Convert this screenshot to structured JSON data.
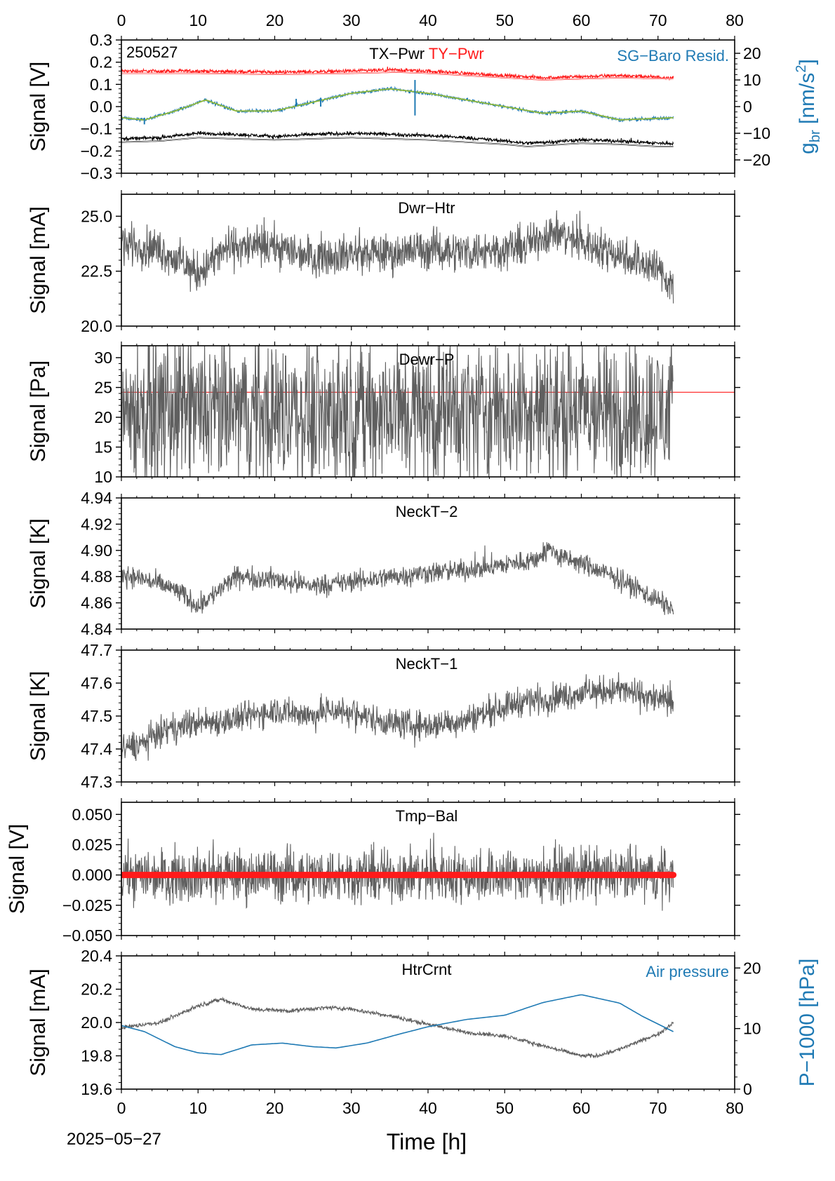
{
  "figure": {
    "date_label": "2025−05−27",
    "xlabel": "Time [h]",
    "xlim": [
      0,
      80
    ],
    "xticks": [
      0,
      10,
      20,
      30,
      40,
      50,
      60,
      70,
      80
    ],
    "colors": {
      "gray": "#5f5f5f",
      "red": "#ff1a1a",
      "blue": "#1f7ab4",
      "green": "#8fb83a",
      "black": "#000000"
    }
  },
  "chart_data": [
    {
      "type": "line",
      "panel_title": "",
      "corner_label": "250527",
      "title_parts": [
        {
          "text": "TX−Pwr",
          "color": "#000000"
        },
        {
          "text": "TY−Pwr",
          "color": "#ff1a1a"
        }
      ],
      "right_label_text": "SG−Baro Resid.",
      "ylabel": "Signal [V]",
      "ylim": [
        -0.3,
        0.3
      ],
      "yticks": [
        -0.3,
        -0.2,
        -0.1,
        0.0,
        0.1,
        0.2,
        0.3
      ],
      "ytick_labels": [
        "−0.3",
        "−0.2",
        "−0.1",
        "0.0",
        "0.1",
        "0.2",
        "0.3"
      ],
      "y2label_main": "g",
      "y2label_sub": "br",
      "y2label_rest": " [nm/s",
      "y2label_sup": "2",
      "y2label_end": "]",
      "y2lim": [
        -25,
        25
      ],
      "y2ticks": [
        -20,
        -10,
        0,
        10,
        20
      ],
      "y2tick_labels": [
        "−20",
        "−10",
        "0",
        "10",
        "20"
      ],
      "series": [
        {
          "name": "TY−Pwr",
          "color": "#ff1a1a",
          "noise": 0.004,
          "x": [
            0,
            10,
            20,
            30,
            36,
            40,
            45,
            50,
            55,
            60,
            65,
            72
          ],
          "y": [
            0.16,
            0.16,
            0.155,
            0.16,
            0.165,
            0.16,
            0.15,
            0.14,
            0.13,
            0.135,
            0.14,
            0.13
          ]
        },
        {
          "name": "TY−Pwr model",
          "color": "#ff1a1a",
          "noise": 0,
          "x": [
            0,
            10,
            20,
            30,
            36,
            40,
            45,
            50,
            55,
            60,
            65,
            72
          ],
          "y": [
            0.15,
            0.15,
            0.145,
            0.15,
            0.155,
            0.15,
            0.14,
            0.13,
            0.12,
            0.125,
            0.13,
            0.125
          ]
        },
        {
          "name": "TX−Pwr",
          "color": "#000000",
          "noise": 0.004,
          "x": [
            0,
            5,
            10,
            15,
            20,
            25,
            30,
            35,
            40,
            45,
            50,
            53,
            60,
            65,
            70,
            72
          ],
          "y": [
            -0.145,
            -0.14,
            -0.12,
            -0.125,
            -0.135,
            -0.125,
            -0.12,
            -0.125,
            -0.13,
            -0.14,
            -0.155,
            -0.165,
            -0.15,
            -0.155,
            -0.165,
            -0.165
          ]
        },
        {
          "name": "TX−Pwr model",
          "color": "#000000",
          "noise": 0,
          "x": [
            0,
            5,
            10,
            15,
            20,
            25,
            30,
            35,
            40,
            45,
            50,
            53,
            60,
            65,
            70,
            72
          ],
          "y": [
            -0.16,
            -0.155,
            -0.14,
            -0.145,
            -0.15,
            -0.145,
            -0.14,
            -0.145,
            -0.15,
            -0.16,
            -0.17,
            -0.18,
            -0.165,
            -0.17,
            -0.18,
            -0.18
          ]
        },
        {
          "name": "SG−Baro Resid.",
          "color": "#1f7ab4",
          "noise": 0.004,
          "x": [
            0,
            3,
            7,
            11,
            15,
            20,
            25,
            30,
            35,
            40,
            45,
            50,
            55,
            60,
            65,
            72
          ],
          "y": [
            -0.05,
            -0.06,
            -0.02,
            0.03,
            -0.02,
            -0.02,
            0.02,
            0.06,
            0.08,
            0.06,
            0.03,
            0.0,
            -0.03,
            -0.02,
            -0.06,
            -0.05
          ]
        },
        {
          "name": "SG−Baro Resid. fit",
          "color": "#8fb83a",
          "noise": 0,
          "x": [
            0,
            3,
            7,
            11,
            15,
            20,
            25,
            30,
            35,
            40,
            45,
            50,
            55,
            60,
            65,
            72
          ],
          "y": [
            -0.05,
            -0.06,
            -0.02,
            0.03,
            -0.02,
            -0.02,
            0.02,
            0.06,
            0.08,
            0.06,
            0.03,
            0.0,
            -0.03,
            -0.02,
            -0.06,
            -0.05
          ]
        }
      ],
      "spikes": [
        {
          "x": 22.8,
          "y0": 0.0,
          "y1": 0.035,
          "color": "#1f7ab4"
        },
        {
          "x": 26.0,
          "y0": 0.0,
          "y1": 0.04,
          "color": "#1f7ab4"
        },
        {
          "x": 38.3,
          "y0": -0.04,
          "y1": 0.12,
          "color": "#1f7ab4"
        },
        {
          "x": 3.0,
          "y0": -0.08,
          "y1": -0.05,
          "color": "#1f7ab4"
        }
      ]
    },
    {
      "type": "line",
      "panel_title": "Dwr−Htr",
      "ylabel": "Signal [mA]",
      "ylim": [
        20,
        26
      ],
      "yticks": [
        20,
        22.5,
        25
      ],
      "ytick_labels": [
        "20.0",
        "22.5",
        "25.0"
      ],
      "series": [
        {
          "name": "Dwr−Htr",
          "color": "#5f5f5f",
          "noise": 0.45,
          "x": [
            0,
            5,
            10,
            14,
            20,
            25,
            30,
            35,
            40,
            45,
            50,
            53,
            56,
            60,
            65,
            70,
            72
          ],
          "y": [
            23.8,
            23.5,
            22.4,
            23.6,
            23.6,
            23.2,
            23.3,
            23.3,
            23.5,
            23.4,
            23.5,
            23.7,
            24.3,
            23.8,
            23.3,
            22.6,
            21.8
          ]
        }
      ]
    },
    {
      "type": "line",
      "panel_title": "Dewr−P",
      "ylabel": "Signal [Pa]",
      "ylim": [
        10,
        32
      ],
      "yticks": [
        10,
        15,
        20,
        25,
        30
      ],
      "ytick_labels": [
        "10",
        "15",
        "20",
        "25",
        "30"
      ],
      "hline": {
        "y": 24.2,
        "color": "#ff1a1a"
      },
      "series": [
        {
          "name": "Dewr−P",
          "color": "#5f5f5f",
          "noise": 6.0,
          "x": [
            0,
            72
          ],
          "y": [
            21,
            21
          ]
        }
      ]
    },
    {
      "type": "line",
      "panel_title": "NeckT−2",
      "ylabel": "Signal [K]",
      "ylim": [
        4.84,
        4.94
      ],
      "yticks": [
        4.84,
        4.86,
        4.88,
        4.9,
        4.92,
        4.94
      ],
      "ytick_labels": [
        "4.84",
        "4.86",
        "4.88",
        "4.90",
        "4.92",
        "4.94"
      ],
      "series": [
        {
          "name": "NeckT−2",
          "color": "#5f5f5f",
          "noise": 0.004,
          "x": [
            0,
            3,
            7,
            10,
            12,
            15,
            20,
            25,
            30,
            35,
            40,
            45,
            50,
            54,
            56,
            57,
            60,
            65,
            70,
            72
          ],
          "y": [
            4.882,
            4.878,
            4.87,
            4.858,
            4.866,
            4.88,
            4.878,
            4.873,
            4.876,
            4.88,
            4.883,
            4.885,
            4.889,
            4.893,
            4.902,
            4.895,
            4.89,
            4.878,
            4.862,
            4.855
          ]
        }
      ]
    },
    {
      "type": "line",
      "panel_title": "NeckT−1",
      "ylabel": "Signal [K]",
      "ylim": [
        47.3,
        47.7
      ],
      "yticks": [
        47.3,
        47.4,
        47.5,
        47.6,
        47.7
      ],
      "ytick_labels": [
        "47.3",
        "47.4",
        "47.5",
        "47.6",
        "47.7"
      ],
      "series": [
        {
          "name": "NeckT−1",
          "color": "#5f5f5f",
          "noise": 0.022,
          "x": [
            0,
            3,
            5,
            8,
            10,
            15,
            20,
            25,
            27,
            30,
            35,
            40,
            45,
            50,
            53,
            55,
            60,
            65,
            70,
            72
          ],
          "y": [
            47.4,
            47.42,
            47.45,
            47.47,
            47.48,
            47.49,
            47.52,
            47.5,
            47.52,
            47.51,
            47.48,
            47.47,
            47.49,
            47.53,
            47.55,
            47.55,
            47.57,
            47.58,
            47.55,
            47.54
          ]
        }
      ]
    },
    {
      "type": "line",
      "panel_title": "Tmp−Bal",
      "ylabel": "Signal [V]",
      "ylim": [
        -0.05,
        0.06
      ],
      "yticks": [
        -0.05,
        -0.025,
        0,
        0.025,
        0.05
      ],
      "ytick_labels": [
        "−0.050",
        "−0.025",
        "0.000",
        "0.025",
        "0.050"
      ],
      "series": [
        {
          "name": "Tmp−Bal",
          "color": "#5f5f5f",
          "noise": 0.011,
          "x": [
            0,
            72
          ],
          "y": [
            0,
            0
          ]
        },
        {
          "name": "Tmp−Bal model",
          "color": "#ff1a1a",
          "noise": 0,
          "x": [
            0,
            72
          ],
          "y": [
            0,
            0
          ]
        }
      ]
    },
    {
      "type": "line",
      "panel_title": "HtrCrnt",
      "right_label_text": "Air pressure",
      "ylabel": "Signal [mA]",
      "ylim": [
        19.6,
        20.4
      ],
      "yticks": [
        19.6,
        19.8,
        20.0,
        20.2,
        20.4
      ],
      "ytick_labels": [
        "19.6",
        "19.8",
        "20.0",
        "20.2",
        "20.4"
      ],
      "y2label_main": "P−1000 [hPa]",
      "y2lim": [
        0,
        22
      ],
      "y2ticks": [
        0,
        10,
        20
      ],
      "y2tick_labels": [
        "0",
        "10",
        "20"
      ],
      "series": [
        {
          "name": "HtrCrnt",
          "color": "#5f5f5f",
          "noise": 0.006,
          "x": [
            0,
            5,
            10,
            13,
            17,
            22,
            27,
            30,
            35,
            40,
            45,
            50,
            55,
            60,
            62,
            65,
            70,
            72
          ],
          "y": [
            19.97,
            20.0,
            20.1,
            20.14,
            20.08,
            20.07,
            20.09,
            20.08,
            20.04,
            19.99,
            19.94,
            19.92,
            19.86,
            19.8,
            19.8,
            19.84,
            19.93,
            20.0
          ]
        },
        {
          "name": "Air pressure",
          "color": "#1f7ab4",
          "noise": 0,
          "x": [
            0,
            3,
            7,
            10,
            13,
            17,
            21,
            25,
            28,
            32,
            36,
            40,
            45,
            50,
            55,
            60,
            65,
            68,
            72
          ],
          "y": [
            10.5,
            9.5,
            7,
            6,
            5.7,
            7.3,
            7.6,
            7,
            6.8,
            7.6,
            9,
            10.3,
            11.5,
            12.2,
            14.3,
            15.6,
            14.2,
            12,
            9.5
          ],
          "axis": "y2"
        }
      ]
    }
  ]
}
